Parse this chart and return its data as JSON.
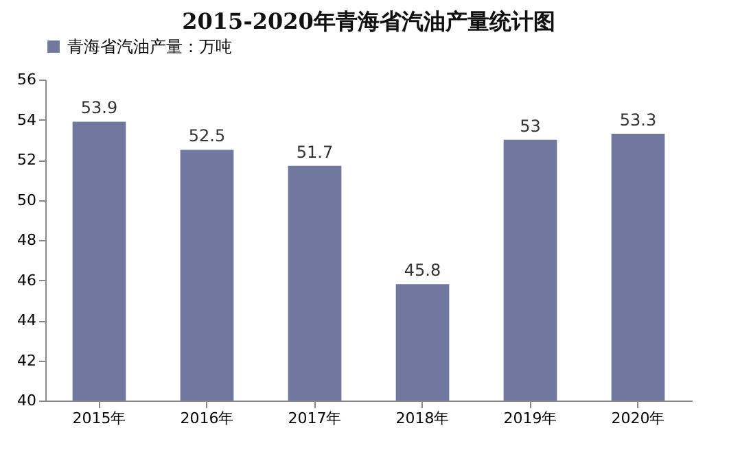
{
  "chart_data": {
    "type": "bar",
    "title": "2015-2020年青海省汽油产量统计图",
    "categories": [
      "2015年",
      "2016年",
      "2017年",
      "2018年",
      "2019年",
      "2020年"
    ],
    "series": [
      {
        "name": "青海省汽油产量：万吨",
        "color": "#7078a0",
        "values": [
          53.9,
          52.5,
          51.7,
          45.8,
          53,
          53.3
        ]
      }
    ],
    "ylim": [
      40,
      56
    ],
    "yticks": [
      40,
      42,
      44,
      46,
      48,
      50,
      52,
      54,
      56
    ],
    "grid": false,
    "legend": "top",
    "data_labels": true
  }
}
